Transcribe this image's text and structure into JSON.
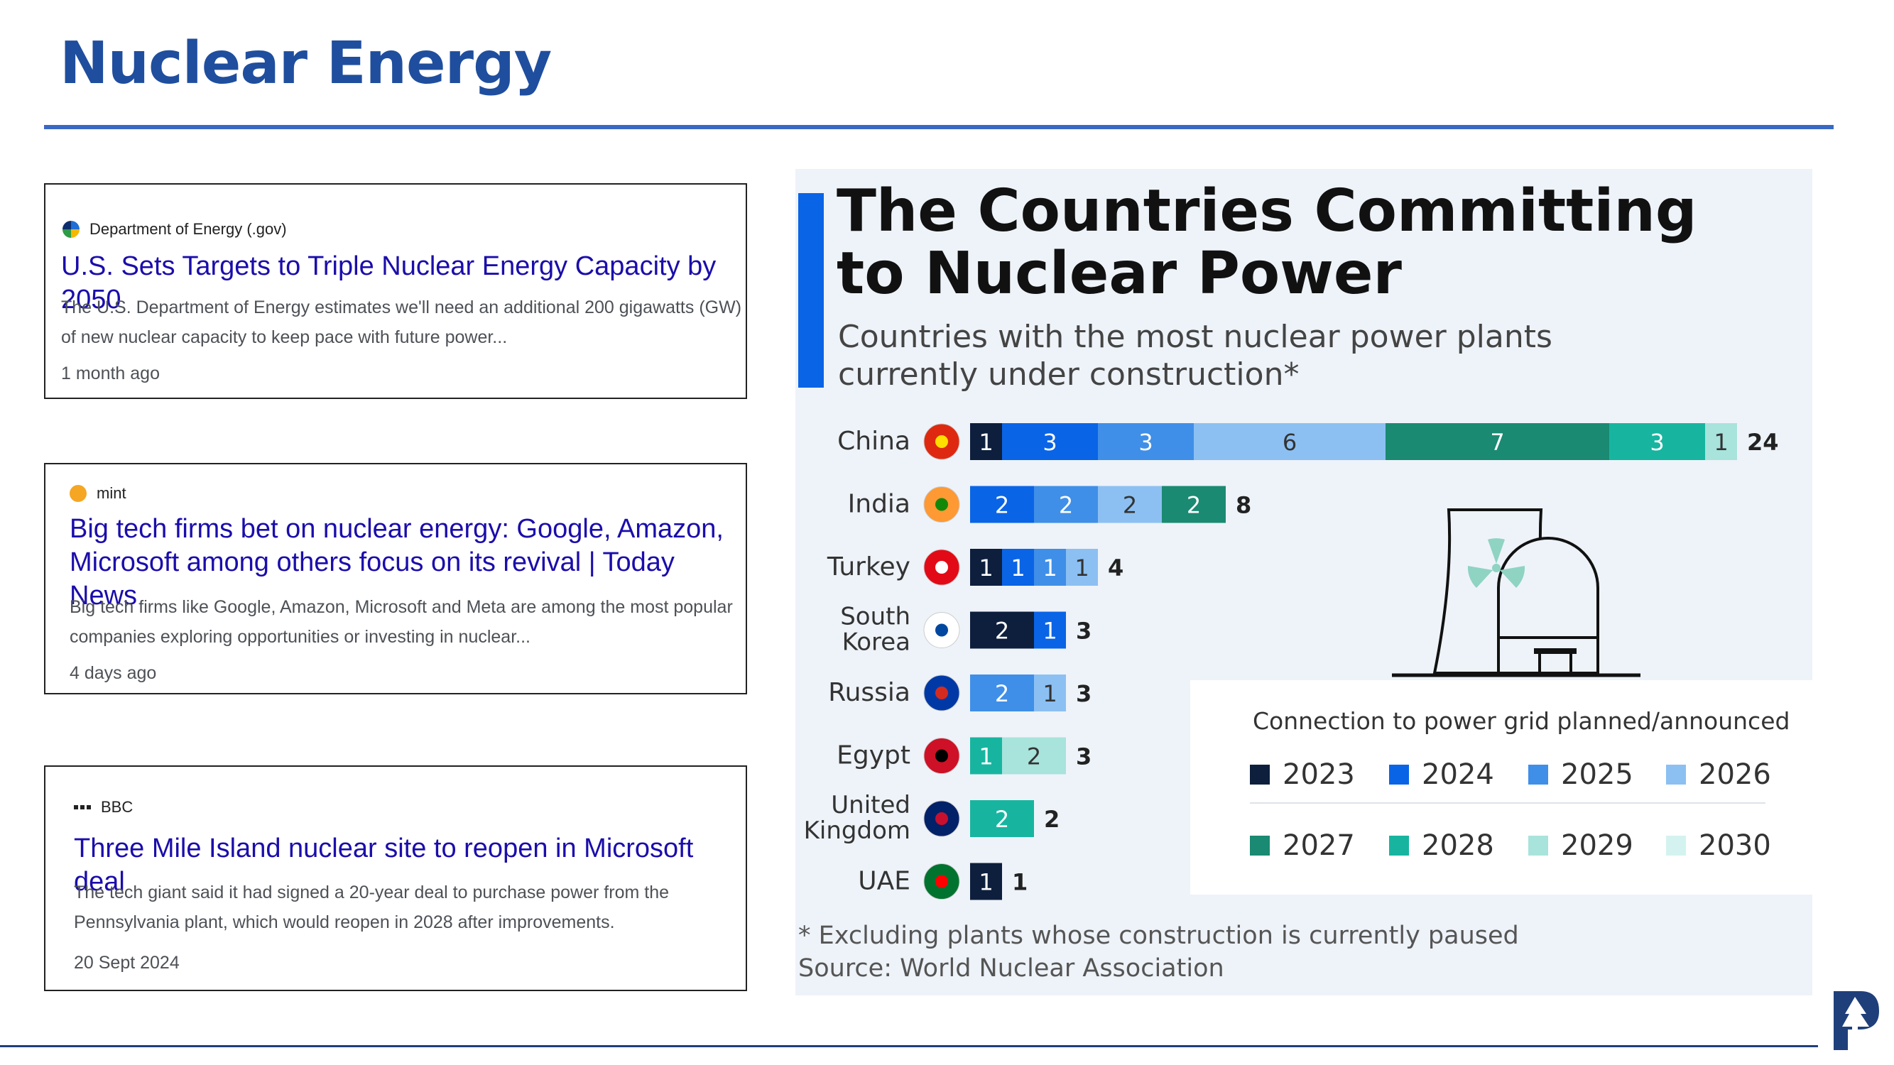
{
  "slide": {
    "title": "Nuclear Energy"
  },
  "cards": [
    {
      "source": "Department of Energy (.gov)",
      "headline": "U.S. Sets Targets to Triple Nuclear Energy Capacity by 2050",
      "snippet_line1": "The U.S. Department of Energy estimates we'll need an additional 200 gigawatts (GW)",
      "snippet_line2": "of new nuclear capacity to keep pace with future power...",
      "age": "1 month ago"
    },
    {
      "source": "mint",
      "headline_line1": "Big tech firms bet on nuclear energy: Google, Amazon,",
      "headline_line2": "Microsoft among others focus on its revival | Today News",
      "snippet_line1": "Big tech firms like Google, Amazon, Microsoft and Meta are among the most popular",
      "snippet_line2": "companies exploring opportunities or investing in nuclear...",
      "age": "4 days ago"
    },
    {
      "source": "BBC",
      "headline": "Three Mile Island nuclear site to reopen in Microsoft deal",
      "snippet_line1": "The tech giant said it had signed a 20-year deal to purchase power from the",
      "snippet_line2": "Pennsylvania plant, which would reopen in 2028 after improvements.",
      "age": "20 Sept 2024"
    }
  ],
  "chart_data": {
    "type": "bar",
    "orientation": "horizontal-stacked",
    "title_line1": "The Countries Committing",
    "title_line2": "to Nuclear Power",
    "subtitle_line1": "Countries with the most nuclear power plants",
    "subtitle_line2": "currently under construction*",
    "categories": [
      "China",
      "India",
      "Turkey",
      "South Korea",
      "Russia",
      "Egypt",
      "United Kingdom",
      "UAE"
    ],
    "series": [
      {
        "name": "2023",
        "color": "#0e1f3d",
        "values": [
          1,
          0,
          1,
          2,
          0,
          0,
          0,
          1
        ]
      },
      {
        "name": "2024",
        "color": "#0a64e6",
        "values": [
          3,
          2,
          1,
          1,
          0,
          0,
          0,
          0
        ]
      },
      {
        "name": "2025",
        "color": "#3f8fe8",
        "values": [
          3,
          2,
          1,
          0,
          2,
          0,
          0,
          0
        ]
      },
      {
        "name": "2026",
        "color": "#8cc0f2",
        "values": [
          6,
          2,
          1,
          0,
          1,
          0,
          0,
          0
        ]
      },
      {
        "name": "2027",
        "color": "#1a8a72",
        "values": [
          7,
          2,
          0,
          0,
          0,
          0,
          0,
          0
        ]
      },
      {
        "name": "2028",
        "color": "#17b5a0",
        "values": [
          3,
          0,
          0,
          0,
          0,
          1,
          2,
          0
        ]
      },
      {
        "name": "2029",
        "color": "#a8e3dc",
        "values": [
          1,
          0,
          0,
          0,
          0,
          2,
          0,
          0
        ]
      },
      {
        "name": "2030",
        "color": "#d4f3f0",
        "values": [
          0,
          0,
          0,
          0,
          0,
          0,
          0,
          0
        ]
      }
    ],
    "totals": [
      24,
      8,
      4,
      3,
      3,
      3,
      2,
      1
    ],
    "legend_title": "Connection to power grid planned/announced",
    "footnote": "* Excluding plants whose construction is currently paused",
    "source": "Source: World Nuclear Association"
  }
}
